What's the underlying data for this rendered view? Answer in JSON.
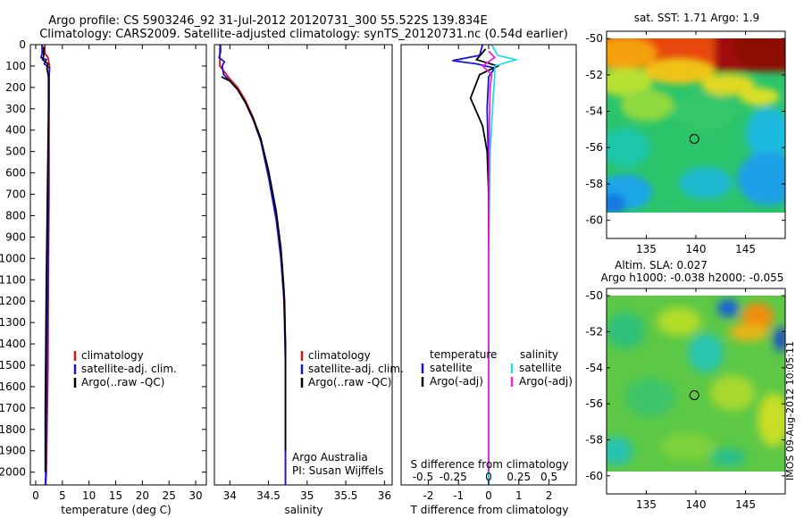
{
  "title": {
    "line1": "Argo profile: CS 5903246_92 31-Jul-2012 20120731_300 55.522S 139.834E",
    "line2": "Climatology: CARS2009. Satellite-adjusted climatology: synTS_20120731.nc (0.54d earlier)"
  },
  "side_stamp": "IMOS 09-Aug-2012 10:05:11",
  "colors": {
    "climatology": "#e01010",
    "satellite": "#1515d8",
    "argo": "#000000",
    "sal_satellite": "#22dde6",
    "sal_argo": "#e623e6"
  },
  "chart_data": [
    {
      "type": "line",
      "panel": "temperature",
      "xlabel": "temperature (deg C)",
      "xlim": [
        -1,
        32
      ],
      "xticks": [
        0,
        5,
        10,
        15,
        20,
        25,
        30
      ],
      "ylim": [
        2060,
        0
      ],
      "yticks": [
        0,
        100,
        200,
        300,
        400,
        500,
        600,
        700,
        800,
        900,
        1000,
        1100,
        1200,
        1300,
        1400,
        1500,
        1600,
        1700,
        1800,
        1900,
        2000
      ],
      "legend": {
        "items": [
          "climatology",
          "satellite-adj. clim.",
          "Argo(..raw -QC)"
        ],
        "position": "center"
      },
      "series": [
        {
          "name": "climatology",
          "color_key": "climatology",
          "points": [
            [
              1.7,
              0
            ],
            [
              1.7,
              40
            ],
            [
              2.3,
              60
            ],
            [
              2.6,
              100
            ],
            [
              2.5,
              150
            ],
            [
              2.5,
              250
            ],
            [
              2.5,
              400
            ],
            [
              2.5,
              700
            ],
            [
              2.4,
              1000
            ],
            [
              2.3,
              1500
            ],
            [
              2.0,
              2000
            ],
            [
              1.9,
              2060
            ]
          ]
        },
        {
          "name": "satellite-adj. clim.",
          "color_key": "satellite",
          "points": [
            [
              1.2,
              0
            ],
            [
              1.2,
              40
            ],
            [
              1.0,
              60
            ],
            [
              2.0,
              70
            ],
            [
              1.6,
              90
            ],
            [
              2.6,
              110
            ],
            [
              2.5,
              150
            ],
            [
              2.5,
              250
            ],
            [
              2.4,
              400
            ],
            [
              2.4,
              700
            ],
            [
              2.3,
              1000
            ],
            [
              2.1,
              1500
            ],
            [
              1.9,
              2000
            ],
            [
              1.8,
              2060
            ]
          ]
        },
        {
          "name": "Argo(..raw -QC)",
          "color_key": "argo",
          "points": [
            [
              1.5,
              10
            ],
            [
              1.5,
              50
            ],
            [
              1.3,
              70
            ],
            [
              2.3,
              90
            ],
            [
              2.1,
              110
            ],
            [
              2.4,
              150
            ],
            [
              2.4,
              300
            ],
            [
              2.3,
              500
            ],
            [
              2.2,
              700
            ],
            [
              2.1,
              900
            ],
            [
              2.0,
              1100
            ],
            [
              1.9,
              1400
            ],
            [
              1.8,
              1700
            ],
            [
              1.8,
              2000
            ]
          ]
        }
      ]
    },
    {
      "type": "line",
      "panel": "salinity",
      "xlabel": "salinity",
      "xlim": [
        33.8,
        36.1
      ],
      "xticks": [
        34,
        34.5,
        35,
        35.5,
        36
      ],
      "ylim": [
        2060,
        0
      ],
      "legend": {
        "items": [
          "climatology",
          "satellite-adj. clim.",
          "Argo(..raw -QC)"
        ],
        "position": "center"
      },
      "annotation": [
        "Argo Australia",
        "PI: Susan Wijffels"
      ],
      "series": [
        {
          "name": "climatology",
          "color_key": "climatology",
          "points": [
            [
              33.87,
              0
            ],
            [
              33.87,
              100
            ],
            [
              34.0,
              160
            ],
            [
              34.1,
              200
            ],
            [
              34.2,
              260
            ],
            [
              34.3,
              340
            ],
            [
              34.4,
              440
            ],
            [
              34.5,
              600
            ],
            [
              34.6,
              800
            ],
            [
              34.67,
              1000
            ],
            [
              34.71,
              1200
            ],
            [
              34.72,
              1500
            ],
            [
              34.72,
              2060
            ]
          ]
        },
        {
          "name": "satellite-adj. clim.",
          "color_key": "satellite",
          "points": [
            [
              33.88,
              0
            ],
            [
              33.88,
              35
            ],
            [
              33.86,
              60
            ],
            [
              33.93,
              80
            ],
            [
              33.9,
              100
            ],
            [
              33.92,
              140
            ],
            [
              34.0,
              170
            ],
            [
              34.1,
              210
            ],
            [
              34.2,
              270
            ],
            [
              34.3,
              350
            ],
            [
              34.4,
              450
            ],
            [
              34.5,
              620
            ],
            [
              34.6,
              820
            ],
            [
              34.66,
              1000
            ],
            [
              34.7,
              1200
            ],
            [
              34.72,
              1500
            ],
            [
              34.72,
              2060
            ]
          ]
        },
        {
          "name": "Argo(..raw -QC)",
          "color_key": "argo",
          "points": [
            [
              33.89,
              150
            ],
            [
              34.0,
              170
            ],
            [
              34.1,
              210
            ],
            [
              34.2,
              270
            ],
            [
              34.3,
              345
            ],
            [
              34.4,
              440
            ],
            [
              34.5,
              590
            ],
            [
              34.6,
              780
            ],
            [
              34.66,
              950
            ],
            [
              34.7,
              1150
            ],
            [
              34.72,
              1400
            ],
            [
              34.72,
              1700
            ],
            [
              34.72,
              1900
            ]
          ]
        }
      ]
    },
    {
      "type": "line",
      "panel": "difference",
      "xlabel": "T difference from climatology",
      "xlim": [
        -2.9,
        2.9
      ],
      "xticks": [
        -2,
        -1,
        0,
        1,
        2
      ],
      "top_axis_label": "S difference from climatology",
      "top_ticks": [
        "-0.5",
        "-0.25",
        "0",
        "0.25",
        "0.5"
      ],
      "ylim": [
        2060,
        0
      ],
      "legend": {
        "temperature_header": "temperature",
        "salinity_header": "salinity",
        "items": [
          "satellite",
          "Argo(-adj)",
          "satellite",
          "Argo(-adj)"
        ]
      },
      "series": [
        {
          "name": "satellite",
          "color_key": "satellite",
          "points": [
            [
              -0.2,
              0
            ],
            [
              -0.3,
              50
            ],
            [
              -1.2,
              75
            ],
            [
              -0.4,
              90
            ],
            [
              0.2,
              110
            ],
            [
              0.0,
              150
            ],
            [
              -0.05,
              300
            ],
            [
              0.0,
              600
            ],
            [
              0.0,
              1000
            ],
            [
              0.0,
              2060
            ]
          ]
        },
        {
          "name": "Argo(-adj)",
          "color_key": "argo",
          "points": [
            [
              -0.1,
              20
            ],
            [
              -0.4,
              70
            ],
            [
              0.3,
              100
            ],
            [
              -0.3,
              140
            ],
            [
              -0.6,
              250
            ],
            [
              -0.2,
              380
            ],
            [
              -0.05,
              500
            ],
            [
              0.0,
              700
            ],
            [
              0.0,
              1200
            ],
            [
              0.0,
              2000
            ]
          ]
        },
        {
          "name": "satellite",
          "color_key": "sal_satellite",
          "points": [
            [
              0.1,
              0
            ],
            [
              0.3,
              50
            ],
            [
              0.9,
              70
            ],
            [
              0.2,
              100
            ],
            [
              0.2,
              140
            ],
            [
              0.15,
              250
            ],
            [
              0.05,
              500
            ],
            [
              0.0,
              1000
            ],
            [
              0.0,
              2060
            ]
          ]
        },
        {
          "name": "Argo(-adj)",
          "color_key": "sal_argo",
          "points": [
            [
              0.0,
              30
            ],
            [
              0.2,
              60
            ],
            [
              -0.2,
              100
            ],
            [
              0.1,
              140
            ],
            [
              0.05,
              200
            ],
            [
              0.02,
              400
            ],
            [
              0.0,
              1000
            ],
            [
              0.0,
              2000
            ]
          ]
        }
      ]
    },
    {
      "type": "heatmap",
      "panel": "sst_map",
      "title": "sat. SST: 1.71 Argo: 1.9",
      "xticks": [
        135,
        140,
        145
      ],
      "yticks": [
        -50,
        -52,
        -54,
        -56,
        -58,
        -60
      ],
      "xlim": [
        131,
        149
      ],
      "ylim": [
        -61,
        -49.6
      ],
      "marker": {
        "lon": 139.834,
        "lat": -55.522
      }
    },
    {
      "type": "heatmap",
      "panel": "sla_map",
      "title": "Altim. SLA: 0.027",
      "subtitle": "Argo h1000: -0.038 h2000: -0.055",
      "xticks": [
        135,
        140,
        145
      ],
      "yticks": [
        -50,
        -52,
        -54,
        -56,
        -58,
        -60
      ],
      "xlim": [
        131,
        149
      ],
      "ylim": [
        -61,
        -49.6
      ],
      "marker": {
        "lon": 139.834,
        "lat": -55.522
      }
    }
  ]
}
